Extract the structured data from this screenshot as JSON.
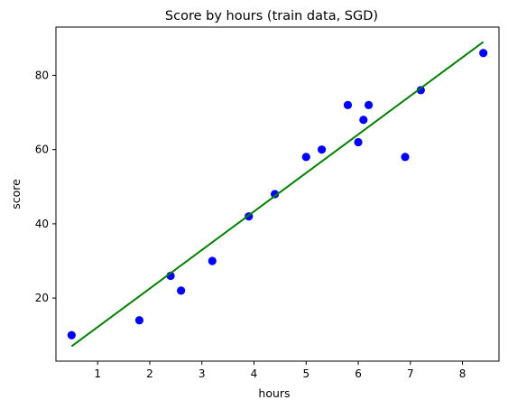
{
  "chart_data": {
    "type": "scatter",
    "title": "Score by hours (train data, SGD)",
    "xlabel": "hours",
    "ylabel": "score",
    "xlim": [
      0.2,
      8.7
    ],
    "ylim": [
      3,
      93
    ],
    "xticks": [
      1,
      2,
      3,
      4,
      5,
      6,
      7,
      8
    ],
    "yticks": [
      20,
      40,
      60,
      80
    ],
    "grid": false,
    "legend": "none",
    "series": [
      {
        "kind": "scatter",
        "color": "#0000ff",
        "x": [
          0.5,
          1.8,
          2.4,
          2.6,
          3.2,
          3.9,
          4.4,
          5.0,
          5.3,
          5.8,
          6.0,
          6.1,
          6.2,
          6.9,
          7.2,
          8.4
        ],
        "y": [
          10,
          14,
          26,
          22,
          30,
          42,
          48,
          58,
          60,
          72,
          62,
          68,
          72,
          58,
          76,
          86
        ]
      },
      {
        "kind": "line",
        "color": "#008000",
        "x": [
          0.5,
          8.4
        ],
        "y": [
          7,
          89
        ]
      }
    ]
  }
}
